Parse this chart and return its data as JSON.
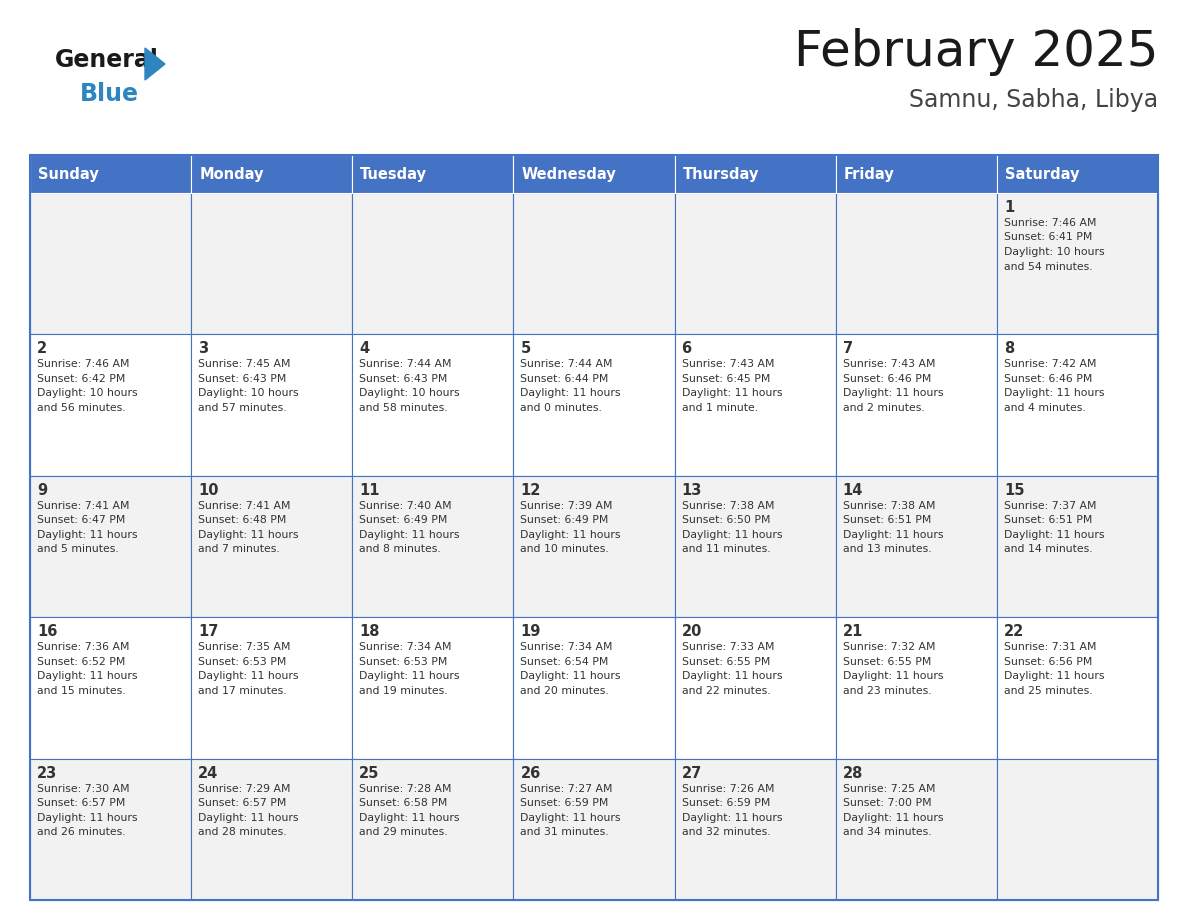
{
  "title": "February 2025",
  "subtitle": "Samnu, Sabha, Libya",
  "days_of_week": [
    "Sunday",
    "Monday",
    "Tuesday",
    "Wednesday",
    "Thursday",
    "Friday",
    "Saturday"
  ],
  "header_bg": "#4472C4",
  "header_text_color": "#FFFFFF",
  "cell_bg_even": "#F2F2F2",
  "cell_bg_odd": "#FFFFFF",
  "cell_border_color": "#4472C4",
  "day_number_color": "#333333",
  "info_text_color": "#333333",
  "logo_general_color": "#1a1a1a",
  "logo_blue_color": "#2E86C1",
  "title_color": "#1a1a1a",
  "subtitle_color": "#444444",
  "calendar_data": [
    {
      "day": 1,
      "col": 6,
      "row": 0,
      "sunrise": "7:46 AM",
      "sunset": "6:41 PM",
      "daylight": "10 hours and 54 minutes."
    },
    {
      "day": 2,
      "col": 0,
      "row": 1,
      "sunrise": "7:46 AM",
      "sunset": "6:42 PM",
      "daylight": "10 hours and 56 minutes."
    },
    {
      "day": 3,
      "col": 1,
      "row": 1,
      "sunrise": "7:45 AM",
      "sunset": "6:43 PM",
      "daylight": "10 hours and 57 minutes."
    },
    {
      "day": 4,
      "col": 2,
      "row": 1,
      "sunrise": "7:44 AM",
      "sunset": "6:43 PM",
      "daylight": "10 hours and 58 minutes."
    },
    {
      "day": 5,
      "col": 3,
      "row": 1,
      "sunrise": "7:44 AM",
      "sunset": "6:44 PM",
      "daylight": "11 hours and 0 minutes."
    },
    {
      "day": 6,
      "col": 4,
      "row": 1,
      "sunrise": "7:43 AM",
      "sunset": "6:45 PM",
      "daylight": "11 hours and 1 minute."
    },
    {
      "day": 7,
      "col": 5,
      "row": 1,
      "sunrise": "7:43 AM",
      "sunset": "6:46 PM",
      "daylight": "11 hours and 2 minutes."
    },
    {
      "day": 8,
      "col": 6,
      "row": 1,
      "sunrise": "7:42 AM",
      "sunset": "6:46 PM",
      "daylight": "11 hours and 4 minutes."
    },
    {
      "day": 9,
      "col": 0,
      "row": 2,
      "sunrise": "7:41 AM",
      "sunset": "6:47 PM",
      "daylight": "11 hours and 5 minutes."
    },
    {
      "day": 10,
      "col": 1,
      "row": 2,
      "sunrise": "7:41 AM",
      "sunset": "6:48 PM",
      "daylight": "11 hours and 7 minutes."
    },
    {
      "day": 11,
      "col": 2,
      "row": 2,
      "sunrise": "7:40 AM",
      "sunset": "6:49 PM",
      "daylight": "11 hours and 8 minutes."
    },
    {
      "day": 12,
      "col": 3,
      "row": 2,
      "sunrise": "7:39 AM",
      "sunset": "6:49 PM",
      "daylight": "11 hours and 10 minutes."
    },
    {
      "day": 13,
      "col": 4,
      "row": 2,
      "sunrise": "7:38 AM",
      "sunset": "6:50 PM",
      "daylight": "11 hours and 11 minutes."
    },
    {
      "day": 14,
      "col": 5,
      "row": 2,
      "sunrise": "7:38 AM",
      "sunset": "6:51 PM",
      "daylight": "11 hours and 13 minutes."
    },
    {
      "day": 15,
      "col": 6,
      "row": 2,
      "sunrise": "7:37 AM",
      "sunset": "6:51 PM",
      "daylight": "11 hours and 14 minutes."
    },
    {
      "day": 16,
      "col": 0,
      "row": 3,
      "sunrise": "7:36 AM",
      "sunset": "6:52 PM",
      "daylight": "11 hours and 15 minutes."
    },
    {
      "day": 17,
      "col": 1,
      "row": 3,
      "sunrise": "7:35 AM",
      "sunset": "6:53 PM",
      "daylight": "11 hours and 17 minutes."
    },
    {
      "day": 18,
      "col": 2,
      "row": 3,
      "sunrise": "7:34 AM",
      "sunset": "6:53 PM",
      "daylight": "11 hours and 19 minutes."
    },
    {
      "day": 19,
      "col": 3,
      "row": 3,
      "sunrise": "7:34 AM",
      "sunset": "6:54 PM",
      "daylight": "11 hours and 20 minutes."
    },
    {
      "day": 20,
      "col": 4,
      "row": 3,
      "sunrise": "7:33 AM",
      "sunset": "6:55 PM",
      "daylight": "11 hours and 22 minutes."
    },
    {
      "day": 21,
      "col": 5,
      "row": 3,
      "sunrise": "7:32 AM",
      "sunset": "6:55 PM",
      "daylight": "11 hours and 23 minutes."
    },
    {
      "day": 22,
      "col": 6,
      "row": 3,
      "sunrise": "7:31 AM",
      "sunset": "6:56 PM",
      "daylight": "11 hours and 25 minutes."
    },
    {
      "day": 23,
      "col": 0,
      "row": 4,
      "sunrise": "7:30 AM",
      "sunset": "6:57 PM",
      "daylight": "11 hours and 26 minutes."
    },
    {
      "day": 24,
      "col": 1,
      "row": 4,
      "sunrise": "7:29 AM",
      "sunset": "6:57 PM",
      "daylight": "11 hours and 28 minutes."
    },
    {
      "day": 25,
      "col": 2,
      "row": 4,
      "sunrise": "7:28 AM",
      "sunset": "6:58 PM",
      "daylight": "11 hours and 29 minutes."
    },
    {
      "day": 26,
      "col": 3,
      "row": 4,
      "sunrise": "7:27 AM",
      "sunset": "6:59 PM",
      "daylight": "11 hours and 31 minutes."
    },
    {
      "day": 27,
      "col": 4,
      "row": 4,
      "sunrise": "7:26 AM",
      "sunset": "6:59 PM",
      "daylight": "11 hours and 32 minutes."
    },
    {
      "day": 28,
      "col": 5,
      "row": 4,
      "sunrise": "7:25 AM",
      "sunset": "7:00 PM",
      "daylight": "11 hours and 34 minutes."
    }
  ],
  "num_rows": 5,
  "num_cols": 7,
  "fig_width": 11.88,
  "fig_height": 9.18,
  "dpi": 100
}
